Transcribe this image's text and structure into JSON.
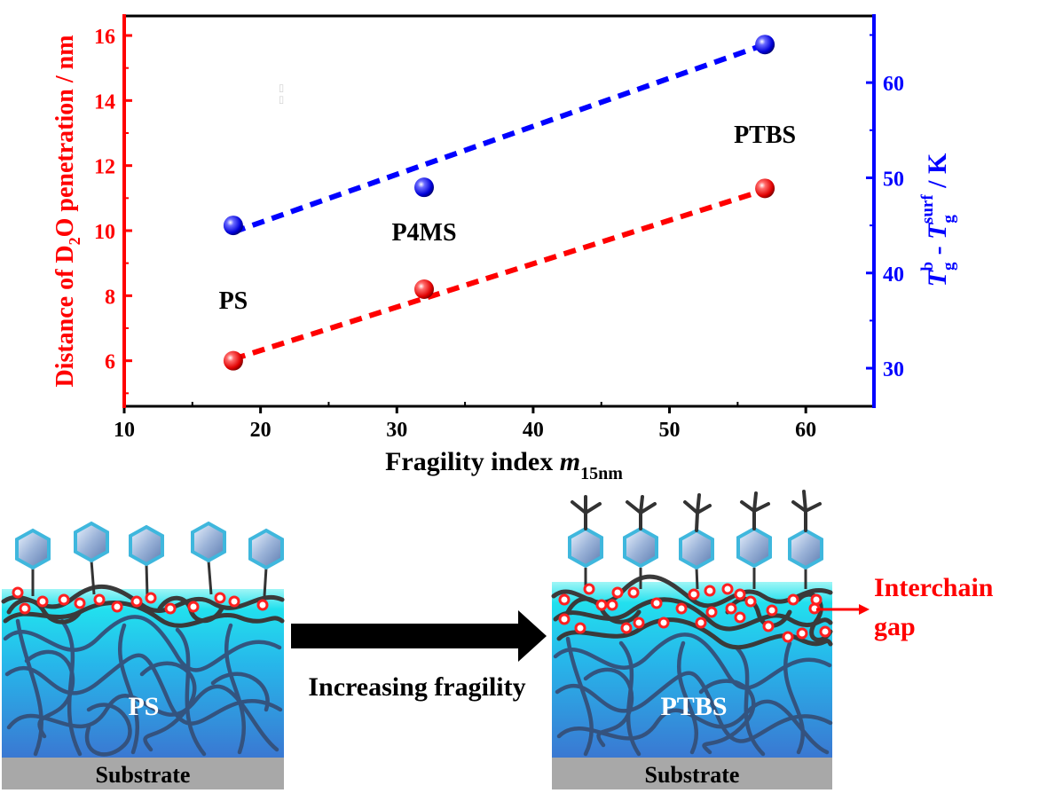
{
  "chart_data": {
    "type": "scatter",
    "title": "",
    "xlabel": {
      "main": "Fragility index ",
      "italic": "m",
      "sub": "15nm"
    },
    "ylabel_left": {
      "pre": "Distance of D",
      "sub": "2",
      "post": "O penetration / nm"
    },
    "ylabel_right": {
      "T1": "T",
      "sub1": "g",
      "sup1": "b",
      "mid": " - ",
      "T2": "T",
      "sub2": "g",
      "sup2": "surf",
      "post": " / K"
    },
    "xlim": [
      10,
      65
    ],
    "ylim_left": [
      4.6,
      16.6
    ],
    "ylim_right": [
      26,
      67
    ],
    "x_ticks": [
      10,
      20,
      30,
      40,
      50,
      60
    ],
    "x_tick_labels": [
      "10",
      "20",
      "30",
      "40",
      "50",
      "60"
    ],
    "y_left_ticks": [
      6,
      8,
      10,
      12,
      14,
      16
    ],
    "y_left_tick_labels": [
      "6",
      "8",
      "10",
      "12",
      "14",
      "16"
    ],
    "y_right_ticks": [
      30,
      40,
      50,
      60
    ],
    "y_right_tick_labels": [
      "30",
      "40",
      "50",
      "60"
    ],
    "series": [
      {
        "axis": "left",
        "color": "#ff0000",
        "x": [
          18,
          32,
          57
        ],
        "y": [
          6.0,
          8.2,
          11.3
        ],
        "fit": [
          [
            18,
            6.05
          ],
          [
            57,
            11.25
          ]
        ]
      },
      {
        "axis": "right",
        "color": "#0000ff",
        "x": [
          18,
          32,
          57
        ],
        "y": [
          45,
          49,
          64
        ],
        "fit": [
          [
            18,
            44.3
          ],
          [
            57,
            64.0
          ]
        ]
      }
    ],
    "annotations": [
      {
        "text": "PS",
        "x": 18,
        "y_left": 7.6
      },
      {
        "text": "P4MS",
        "x": 32,
        "y_left": 9.7
      },
      {
        "text": "PTBS",
        "x": 57,
        "y_left": 12.7
      }
    ]
  },
  "schematic": {
    "left_panel": {
      "polymer": "PS",
      "substrate": "Substrate"
    },
    "right_panel": {
      "polymer": "PTBS",
      "substrate": "Substrate"
    },
    "arrow_label": "Increasing fragility",
    "gap_label_line1": "Interchain",
    "gap_label_line2": "gap",
    "colors": {
      "water_top": "#22e0ee",
      "water_bottom": "#3a78d2",
      "substrate": "#a8a8a8",
      "chain": "#3a3a3a",
      "bulk_chain": "#34507a",
      "gap_circle": "#ff2020"
    }
  }
}
